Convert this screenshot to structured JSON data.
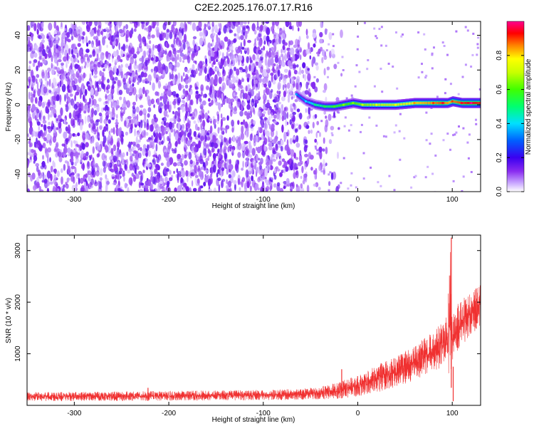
{
  "page_title": "C2E2.2025.176.07.17.R16",
  "chart_data": [
    {
      "type": "heatmap",
      "title": "C2E2.2025.176.07.17.R16",
      "xlabel": "Height of straight line (km)",
      "ylabel": "Frequency (Hz)",
      "xlim": [
        -350,
        130
      ],
      "ylim": [
        -50,
        48
      ],
      "x_ticks": [
        -300,
        -200,
        -100,
        0,
        100
      ],
      "y_ticks": [
        -40,
        -20,
        0,
        20,
        40
      ],
      "grid": false,
      "noise_region": {
        "x_range": [
          -350,
          -50
        ],
        "y_range": [
          -50,
          48
        ],
        "typical_amplitude": 0.15
      },
      "signal_track": {
        "x": [
          -65,
          -55,
          -45,
          -35,
          -25,
          -15,
          -5,
          5,
          20,
          40,
          60,
          80,
          90,
          95,
          100,
          110,
          120,
          130
        ],
        "frequency": [
          6,
          2,
          0,
          -1,
          -1,
          0,
          1,
          0,
          0,
          0,
          1,
          1,
          1,
          1,
          2,
          1,
          1,
          1
        ],
        "amplitude": [
          0.3,
          0.35,
          0.45,
          0.5,
          0.55,
          0.6,
          0.6,
          0.65,
          0.7,
          0.72,
          0.8,
          0.85,
          0.9,
          0.8,
          0.85,
          0.9,
          0.95,
          0.9
        ]
      },
      "colorbar": {
        "label": "Normalized spectral amplitude",
        "range": [
          0,
          1
        ],
        "ticks": [
          "0.0",
          "0.2",
          "0.4",
          "0.6",
          "0.8"
        ],
        "ticks_values": [
          0.0,
          0.2,
          0.4,
          0.6,
          0.8
        ]
      }
    },
    {
      "type": "line",
      "xlabel": "Height of straight line (km)",
      "ylabel": "SNR (10 * v/v)",
      "xlim": [
        -350,
        130
      ],
      "ylim": [
        0,
        3300
      ],
      "x_ticks": [
        -300,
        -200,
        -100,
        0,
        100
      ],
      "y_ticks": [
        1000,
        2000,
        3000
      ],
      "grid": false,
      "color": "#f03030",
      "envelope": {
        "x": [
          -350,
          -300,
          -250,
          -200,
          -150,
          -100,
          -60,
          -40,
          -20,
          0,
          20,
          40,
          60,
          80,
          90,
          95,
          98,
          100,
          102,
          105,
          110,
          120,
          130
        ],
        "low": [
          80,
          80,
          85,
          90,
          95,
          100,
          105,
          110,
          130,
          170,
          250,
          350,
          480,
          650,
          750,
          800,
          80,
          600,
          900,
          1000,
          1150,
          1350,
          1500
        ],
        "high": [
          260,
          260,
          270,
          280,
          290,
          300,
          320,
          360,
          450,
          600,
          780,
          950,
          1150,
          1450,
          1650,
          1800,
          3250,
          2000,
          1900,
          1950,
          2050,
          2200,
          2350
        ]
      },
      "spikes": [
        {
          "x": -17,
          "y": 700
        },
        {
          "x": -222,
          "y": 340
        },
        {
          "x": 99,
          "y": 3250
        },
        {
          "x": 101,
          "y": 80
        }
      ]
    }
  ]
}
